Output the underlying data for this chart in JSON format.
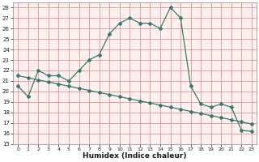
{
  "line1_x": [
    0,
    1,
    2,
    3,
    4,
    5,
    6,
    7,
    8,
    9,
    10,
    11,
    12,
    13,
    14,
    15,
    16,
    17,
    18,
    19,
    20,
    21,
    22,
    23
  ],
  "line1_y": [
    20.5,
    19.5,
    22.0,
    21.5,
    21.5,
    21.0,
    22.0,
    23.0,
    23.5,
    25.5,
    26.5,
    27.0,
    26.5,
    26.5,
    26.0,
    28.0,
    27.0,
    20.5,
    18.8,
    18.5,
    18.8,
    18.5,
    16.3,
    16.2
  ],
  "line2_x": [
    0,
    1,
    2,
    3,
    4,
    5,
    6,
    7,
    8,
    9,
    10,
    11,
    12,
    13,
    14,
    15,
    16,
    17,
    18,
    19,
    20,
    21,
    22,
    23
  ],
  "line2_y": [
    21.5,
    21.3,
    21.1,
    20.9,
    20.7,
    20.5,
    20.3,
    20.1,
    19.9,
    19.7,
    19.5,
    19.3,
    19.1,
    18.9,
    18.7,
    18.5,
    18.3,
    18.1,
    17.9,
    17.7,
    17.5,
    17.3,
    17.1,
    16.9
  ],
  "line_color": "#2e7d6e",
  "bg_color": "#ffffff",
  "plot_bg_color": "#fff0f0",
  "grid_color": "#e08080",
  "xlabel": "Humidex (Indice chaleur)",
  "xlim": [
    -0.5,
    23.5
  ],
  "ylim": [
    15,
    28.5
  ],
  "yticks": [
    15,
    16,
    17,
    18,
    19,
    20,
    21,
    22,
    23,
    24,
    25,
    26,
    27,
    28
  ],
  "xticks": [
    0,
    1,
    2,
    3,
    4,
    5,
    6,
    7,
    8,
    9,
    10,
    11,
    12,
    13,
    14,
    15,
    16,
    17,
    18,
    19,
    20,
    21,
    22,
    23
  ],
  "marker": "D",
  "markersize": 2.0,
  "linewidth": 0.9,
  "tick_fontsize": 5.5,
  "xlabel_fontsize": 6.5
}
